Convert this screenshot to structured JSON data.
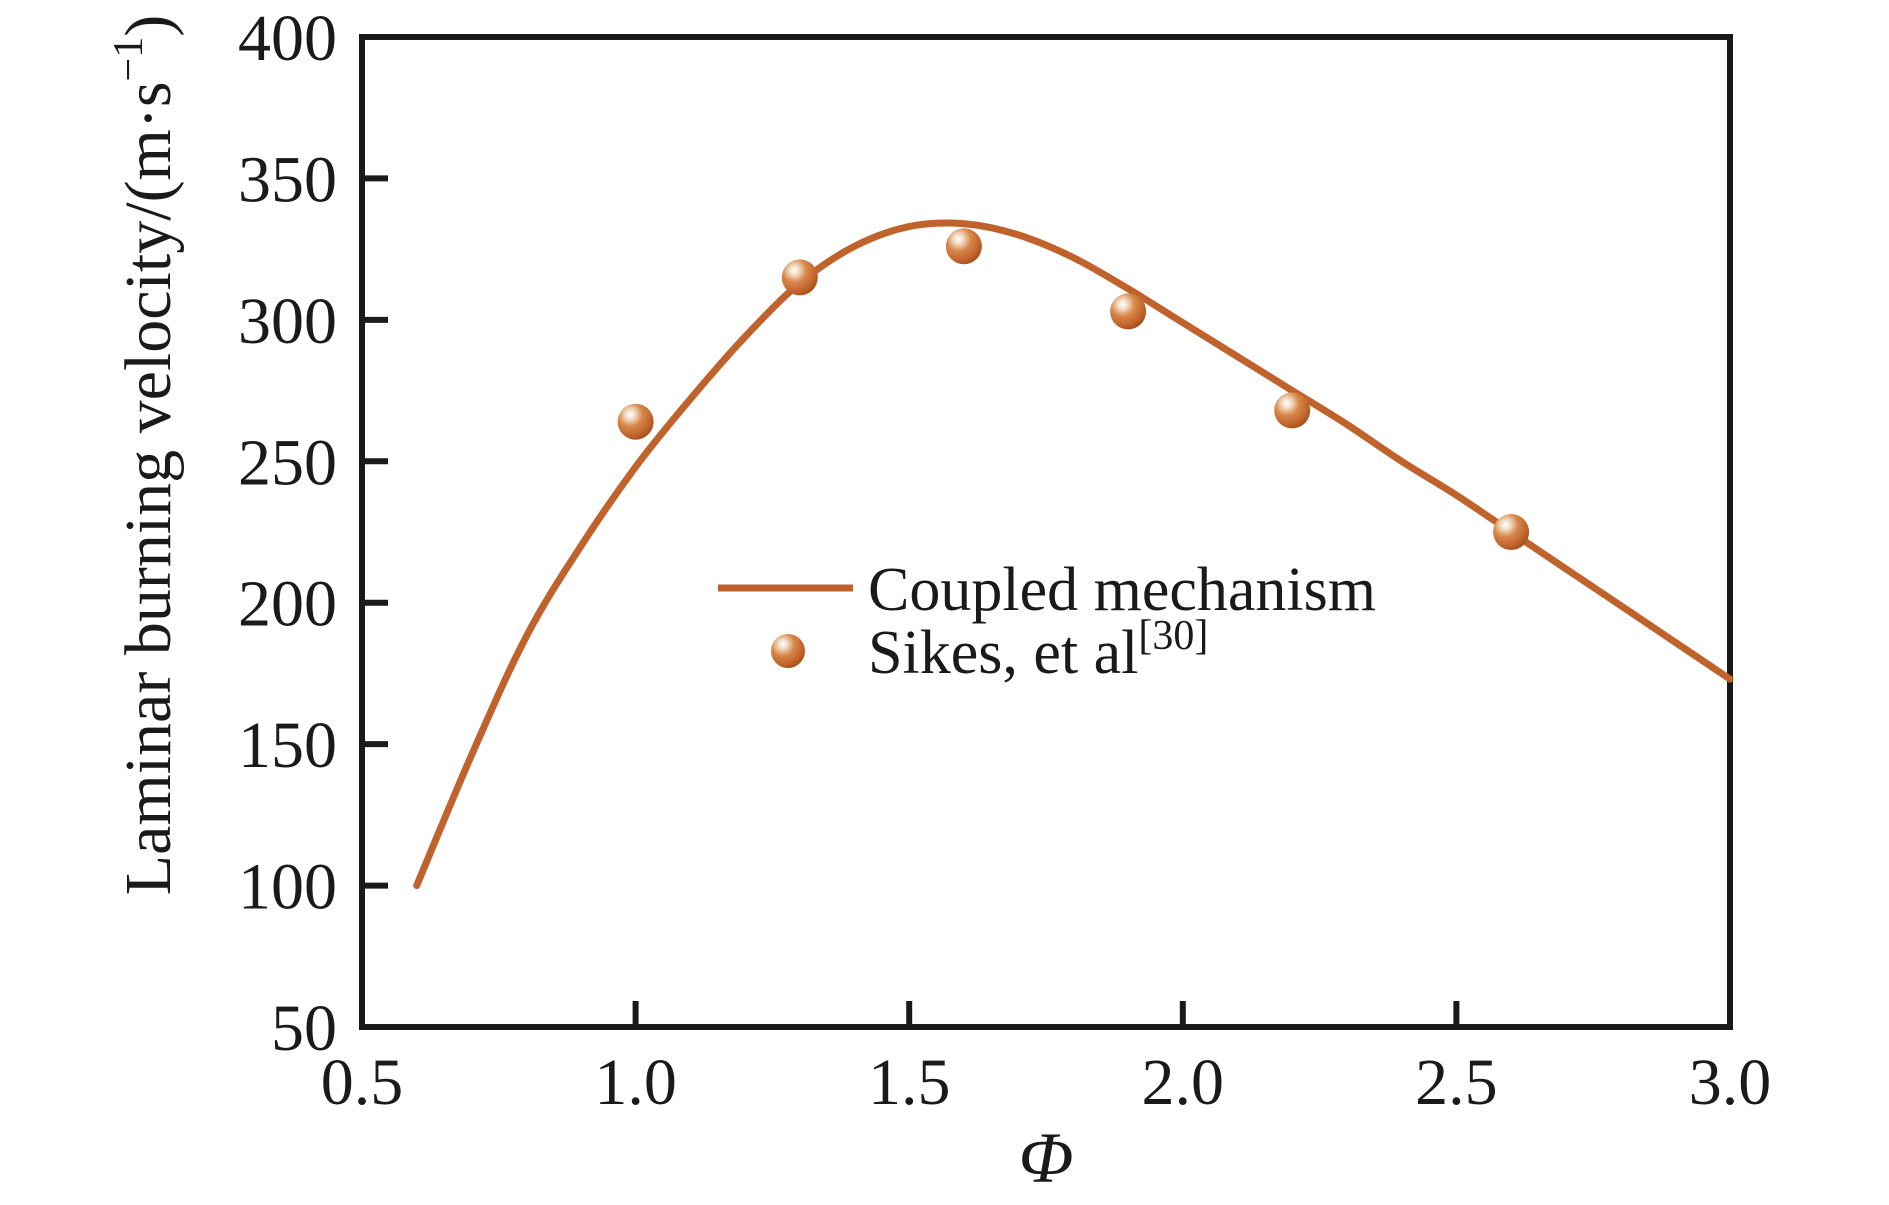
{
  "figure": {
    "background": "#ffffff"
  },
  "colors": {
    "curve": "#C0622B",
    "axis": "#1a1a1a",
    "text": "#1a1a1a",
    "sphere_highlight": "#FFFFFF",
    "sphere_light": "#F1DCC4",
    "sphere_mid": "#D8874A",
    "sphere_base": "#C0622B",
    "sphere_edge": "#A24F1A"
  },
  "chart_data": {
    "type": "line+scatter",
    "title": "",
    "xlabel": "Φ",
    "ylabel": "Laminar burning velocity/(m·s⁻¹)",
    "ylabel_parts": {
      "main": "Laminar burning velocity/(m·s",
      "sup": "−1",
      "close": ")"
    },
    "xlim": [
      0.5,
      3.0
    ],
    "ylim": [
      50,
      400
    ],
    "x_ticks": [
      0.5,
      1.0,
      1.5,
      2.0,
      2.5,
      3.0
    ],
    "x_tick_labels": [
      "0.5",
      "1.0",
      "1.5",
      "2.0",
      "2.5",
      "3.0"
    ],
    "y_ticks": [
      50,
      100,
      150,
      200,
      250,
      300,
      350,
      400
    ],
    "y_tick_labels": [
      "50",
      "100",
      "150",
      "200",
      "250",
      "300",
      "350",
      "400"
    ],
    "grid": "off",
    "legend_position": "center",
    "series": [
      {
        "name": "Coupled mechanism",
        "type": "line",
        "x": [
          0.6,
          0.7,
          0.8,
          0.9,
          1.0,
          1.1,
          1.2,
          1.3,
          1.4,
          1.5,
          1.6,
          1.7,
          1.8,
          1.9,
          2.0,
          2.1,
          2.2,
          2.3,
          2.4,
          2.5,
          2.6,
          2.7,
          2.8,
          2.9,
          3.0
        ],
        "y": [
          100,
          146,
          188,
          220,
          248,
          272,
          294,
          313,
          326,
          333,
          334,
          330,
          322,
          311,
          299,
          287,
          275,
          263,
          250,
          238,
          225,
          212,
          199,
          186,
          173
        ]
      },
      {
        "name": "Sikes, et al[30]",
        "type": "scatter",
        "x": [
          1.0,
          1.3,
          1.6,
          1.9,
          2.2,
          2.6
        ],
        "y": [
          264,
          315,
          326,
          303,
          268,
          225
        ]
      }
    ],
    "legend": {
      "entries": [
        {
          "type": "line",
          "label": "Coupled mechanism"
        },
        {
          "type": "scatter",
          "label_main": "Sikes, et al",
          "label_sup": "[30]"
        }
      ]
    }
  }
}
